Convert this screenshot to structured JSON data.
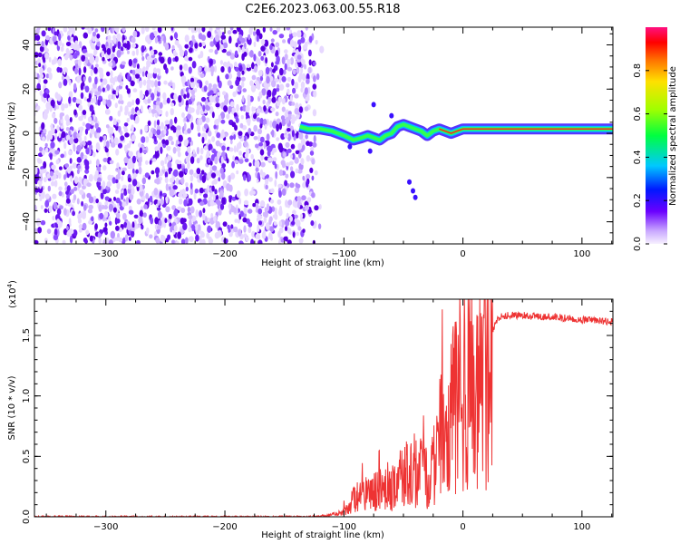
{
  "chart_data": [
    {
      "type": "heatmap",
      "title": "C2E6.2023.063.00.55.R18",
      "xlabel": "Height of straight line (km)",
      "ylabel": "Frequency (Hz)",
      "xlim": [
        -360,
        126
      ],
      "ylim": [
        -50,
        48
      ],
      "xticks": [
        -300,
        -200,
        -100,
        0,
        100
      ],
      "xtick_labels": [
        "−300",
        "−200",
        "−100",
        "0",
        "100"
      ],
      "yticks": [
        -40,
        -20,
        0,
        20,
        40
      ],
      "ytick_labels": [
        "−40",
        "−20",
        "0",
        "20",
        "40"
      ],
      "noise_region_x": [
        -360,
        -125
      ],
      "signal_track": {
        "x": [
          -137,
          -130,
          -120,
          -110,
          -100,
          -92,
          -85,
          -80,
          -75,
          -70,
          -65,
          -60,
          -55,
          -50,
          -45,
          -40,
          -35,
          -30,
          -25,
          -20,
          -15,
          -10,
          -5,
          0,
          20,
          40,
          60,
          80,
          100,
          126
        ],
        "y": [
          3,
          2,
          2,
          1,
          -1,
          -3,
          -2,
          -1,
          -2,
          -3,
          -1,
          0,
          3,
          4,
          3,
          2,
          1,
          -1,
          1,
          2,
          1,
          0,
          1,
          2,
          2,
          2,
          2,
          2,
          2,
          2
        ]
      },
      "colorbar": {
        "label": "Normalized spectral amplitude",
        "range": [
          0,
          1
        ],
        "ticks": [
          0.0,
          0.2,
          0.4,
          0.6,
          0.8
        ],
        "tick_labels": [
          "0.0",
          "0.2",
          "0.4",
          "0.6",
          "0.8"
        ]
      }
    },
    {
      "type": "line",
      "xlabel": "Height of straight line (km)",
      "ylabel": "SNR (10 * v/v)",
      "y_scale_label": "(x10",
      "y_scale_exponent": "4",
      "y_scale_close": ")",
      "xlim": [
        -360,
        126
      ],
      "ylim": [
        0,
        1.8
      ],
      "xticks": [
        -300,
        -200,
        -100,
        0,
        100
      ],
      "xtick_labels": [
        "−300",
        "−200",
        "−100",
        "0",
        "100"
      ],
      "yticks": [
        0.0,
        0.5,
        1.0,
        1.5
      ],
      "ytick_labels": [
        "0.0",
        "0.5",
        "1.0",
        "1.5"
      ],
      "series": [
        {
          "name": "SNR",
          "color": "#ee3333",
          "x": [
            -360,
            -300,
            -200,
            -130,
            -115,
            -105,
            -100,
            -95,
            -90,
            -80,
            -70,
            -60,
            -55,
            -50,
            -45,
            -40,
            -35,
            -30,
            -25,
            -20,
            -15,
            -10,
            -5,
            0,
            5,
            10,
            15,
            20,
            25,
            30,
            40,
            60,
            80,
            100,
            126
          ],
          "y": [
            0.0,
            0.0,
            0.0,
            0.0,
            0.01,
            0.03,
            0.06,
            0.12,
            0.18,
            0.22,
            0.25,
            0.3,
            0.32,
            0.38,
            0.42,
            0.45,
            0.4,
            0.35,
            0.45,
            0.7,
            0.85,
            0.95,
            1.05,
            1.15,
            1.25,
            1.3,
            1.35,
            1.45,
            1.55,
            1.65,
            1.67,
            1.66,
            1.65,
            1.63,
            1.61
          ]
        }
      ]
    }
  ],
  "colors": {
    "line": "#ee3333",
    "noise": "#7a2bf0",
    "axis": "#000000"
  }
}
